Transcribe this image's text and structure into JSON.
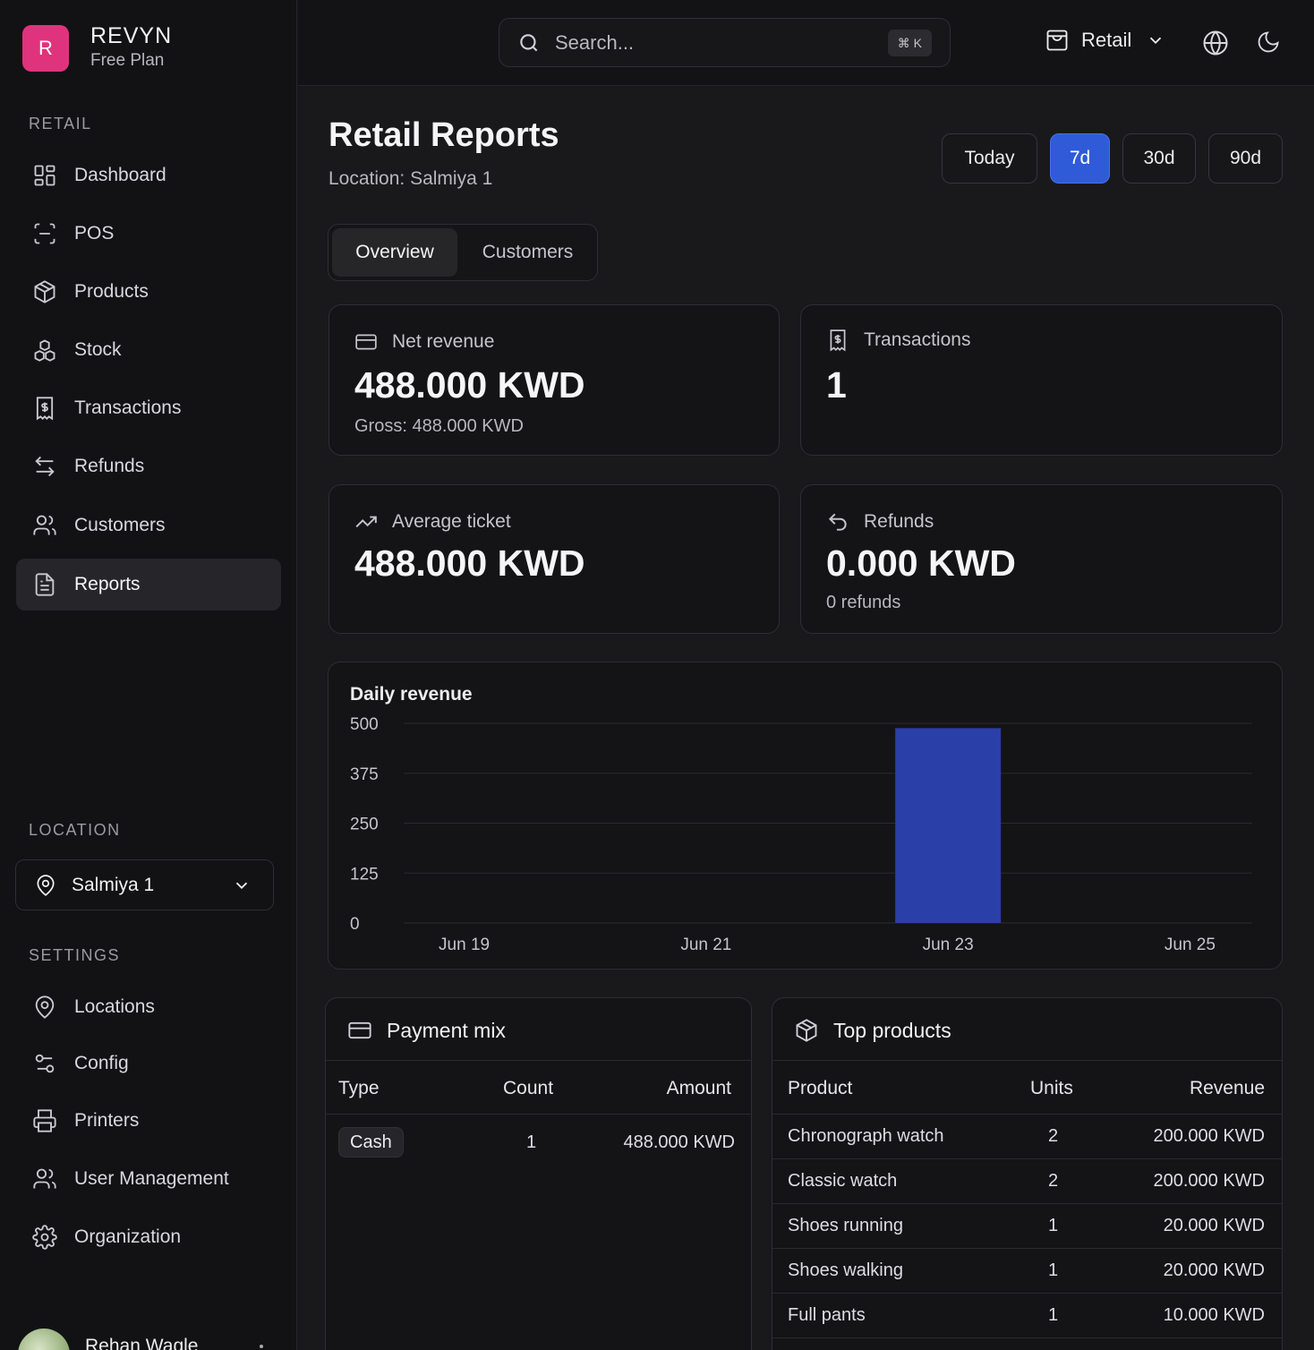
{
  "brand": {
    "initial": "R",
    "name": "REVYN",
    "plan": "Free Plan"
  },
  "sidebar": {
    "section_retail": "RETAIL",
    "items": [
      {
        "label": "Dashboard",
        "icon": "dashboard-icon"
      },
      {
        "label": "POS",
        "icon": "scan-icon"
      },
      {
        "label": "Products",
        "icon": "package-icon"
      },
      {
        "label": "Stock",
        "icon": "boxes-icon"
      },
      {
        "label": "Transactions",
        "icon": "receipt-icon"
      },
      {
        "label": "Refunds",
        "icon": "arrows-swap-icon"
      },
      {
        "label": "Customers",
        "icon": "users-icon"
      },
      {
        "label": "Reports",
        "icon": "file-text-icon",
        "active": true
      }
    ],
    "section_location": "LOCATION",
    "location_value": "Salmiya 1",
    "section_settings": "SETTINGS",
    "settings_items": [
      {
        "label": "Locations",
        "icon": "map-pin-icon"
      },
      {
        "label": "Config",
        "icon": "sliders-icon"
      },
      {
        "label": "Printers",
        "icon": "printer-icon"
      },
      {
        "label": "User Management",
        "icon": "users-icon"
      },
      {
        "label": "Organization",
        "icon": "gear-icon"
      }
    ],
    "user_name": "Rehan Wagle"
  },
  "topbar": {
    "search_placeholder": "Search...",
    "shortcut": "⌘ K",
    "store_label": "Retail"
  },
  "page": {
    "title": "Retail Reports",
    "subtitle": "Location: Salmiya 1",
    "ranges": [
      "Today",
      "7d",
      "30d",
      "90d"
    ],
    "active_range": "7d",
    "tabs": [
      "Overview",
      "Customers"
    ],
    "active_tab": "Overview"
  },
  "stats": {
    "net_revenue": {
      "label": "Net revenue",
      "value": "488.000 KWD",
      "sub": "Gross: 488.000 KWD"
    },
    "transactions": {
      "label": "Transactions",
      "value": "1"
    },
    "average_ticket": {
      "label": "Average ticket",
      "value": "488.000 KWD"
    },
    "refunds": {
      "label": "Refunds",
      "value": "0.000 KWD",
      "sub": "0 refunds"
    }
  },
  "chart_data": {
    "type": "bar",
    "title": "Daily revenue",
    "categories": [
      "Jun 19",
      "Jun 20",
      "Jun 21",
      "Jun 22",
      "Jun 23",
      "Jun 24",
      "Jun 25"
    ],
    "x_tick_labels": [
      "Jun 19",
      "Jun 21",
      "Jun 23",
      "Jun 25"
    ],
    "values": [
      0,
      0,
      0,
      0,
      488,
      0,
      0
    ],
    "y_ticks": [
      0,
      125,
      250,
      375,
      500
    ],
    "ylim": [
      0,
      500
    ],
    "bar_color": "#2a3fa8",
    "grid": true
  },
  "payment_mix": {
    "title": "Payment mix",
    "headers": [
      "Type",
      "Count",
      "Amount"
    ],
    "rows": [
      {
        "type": "Cash",
        "count": "1",
        "amount": "488.000 KWD"
      }
    ]
  },
  "top_products": {
    "title": "Top products",
    "headers": [
      "Product",
      "Units",
      "Revenue"
    ],
    "rows": [
      {
        "product": "Chronograph watch",
        "units": "2",
        "revenue": "200.000 KWD"
      },
      {
        "product": "Classic watch",
        "units": "2",
        "revenue": "200.000 KWD"
      },
      {
        "product": "Shoes running",
        "units": "1",
        "revenue": "20.000 KWD"
      },
      {
        "product": "Shoes walking",
        "units": "1",
        "revenue": "20.000 KWD"
      },
      {
        "product": "Full pants",
        "units": "1",
        "revenue": "10.000 KWD"
      }
    ]
  },
  "colors": {
    "accent": "#2f5bd9",
    "brand": "#e0337e",
    "background": "#19191c",
    "sidebar": "#121214"
  }
}
